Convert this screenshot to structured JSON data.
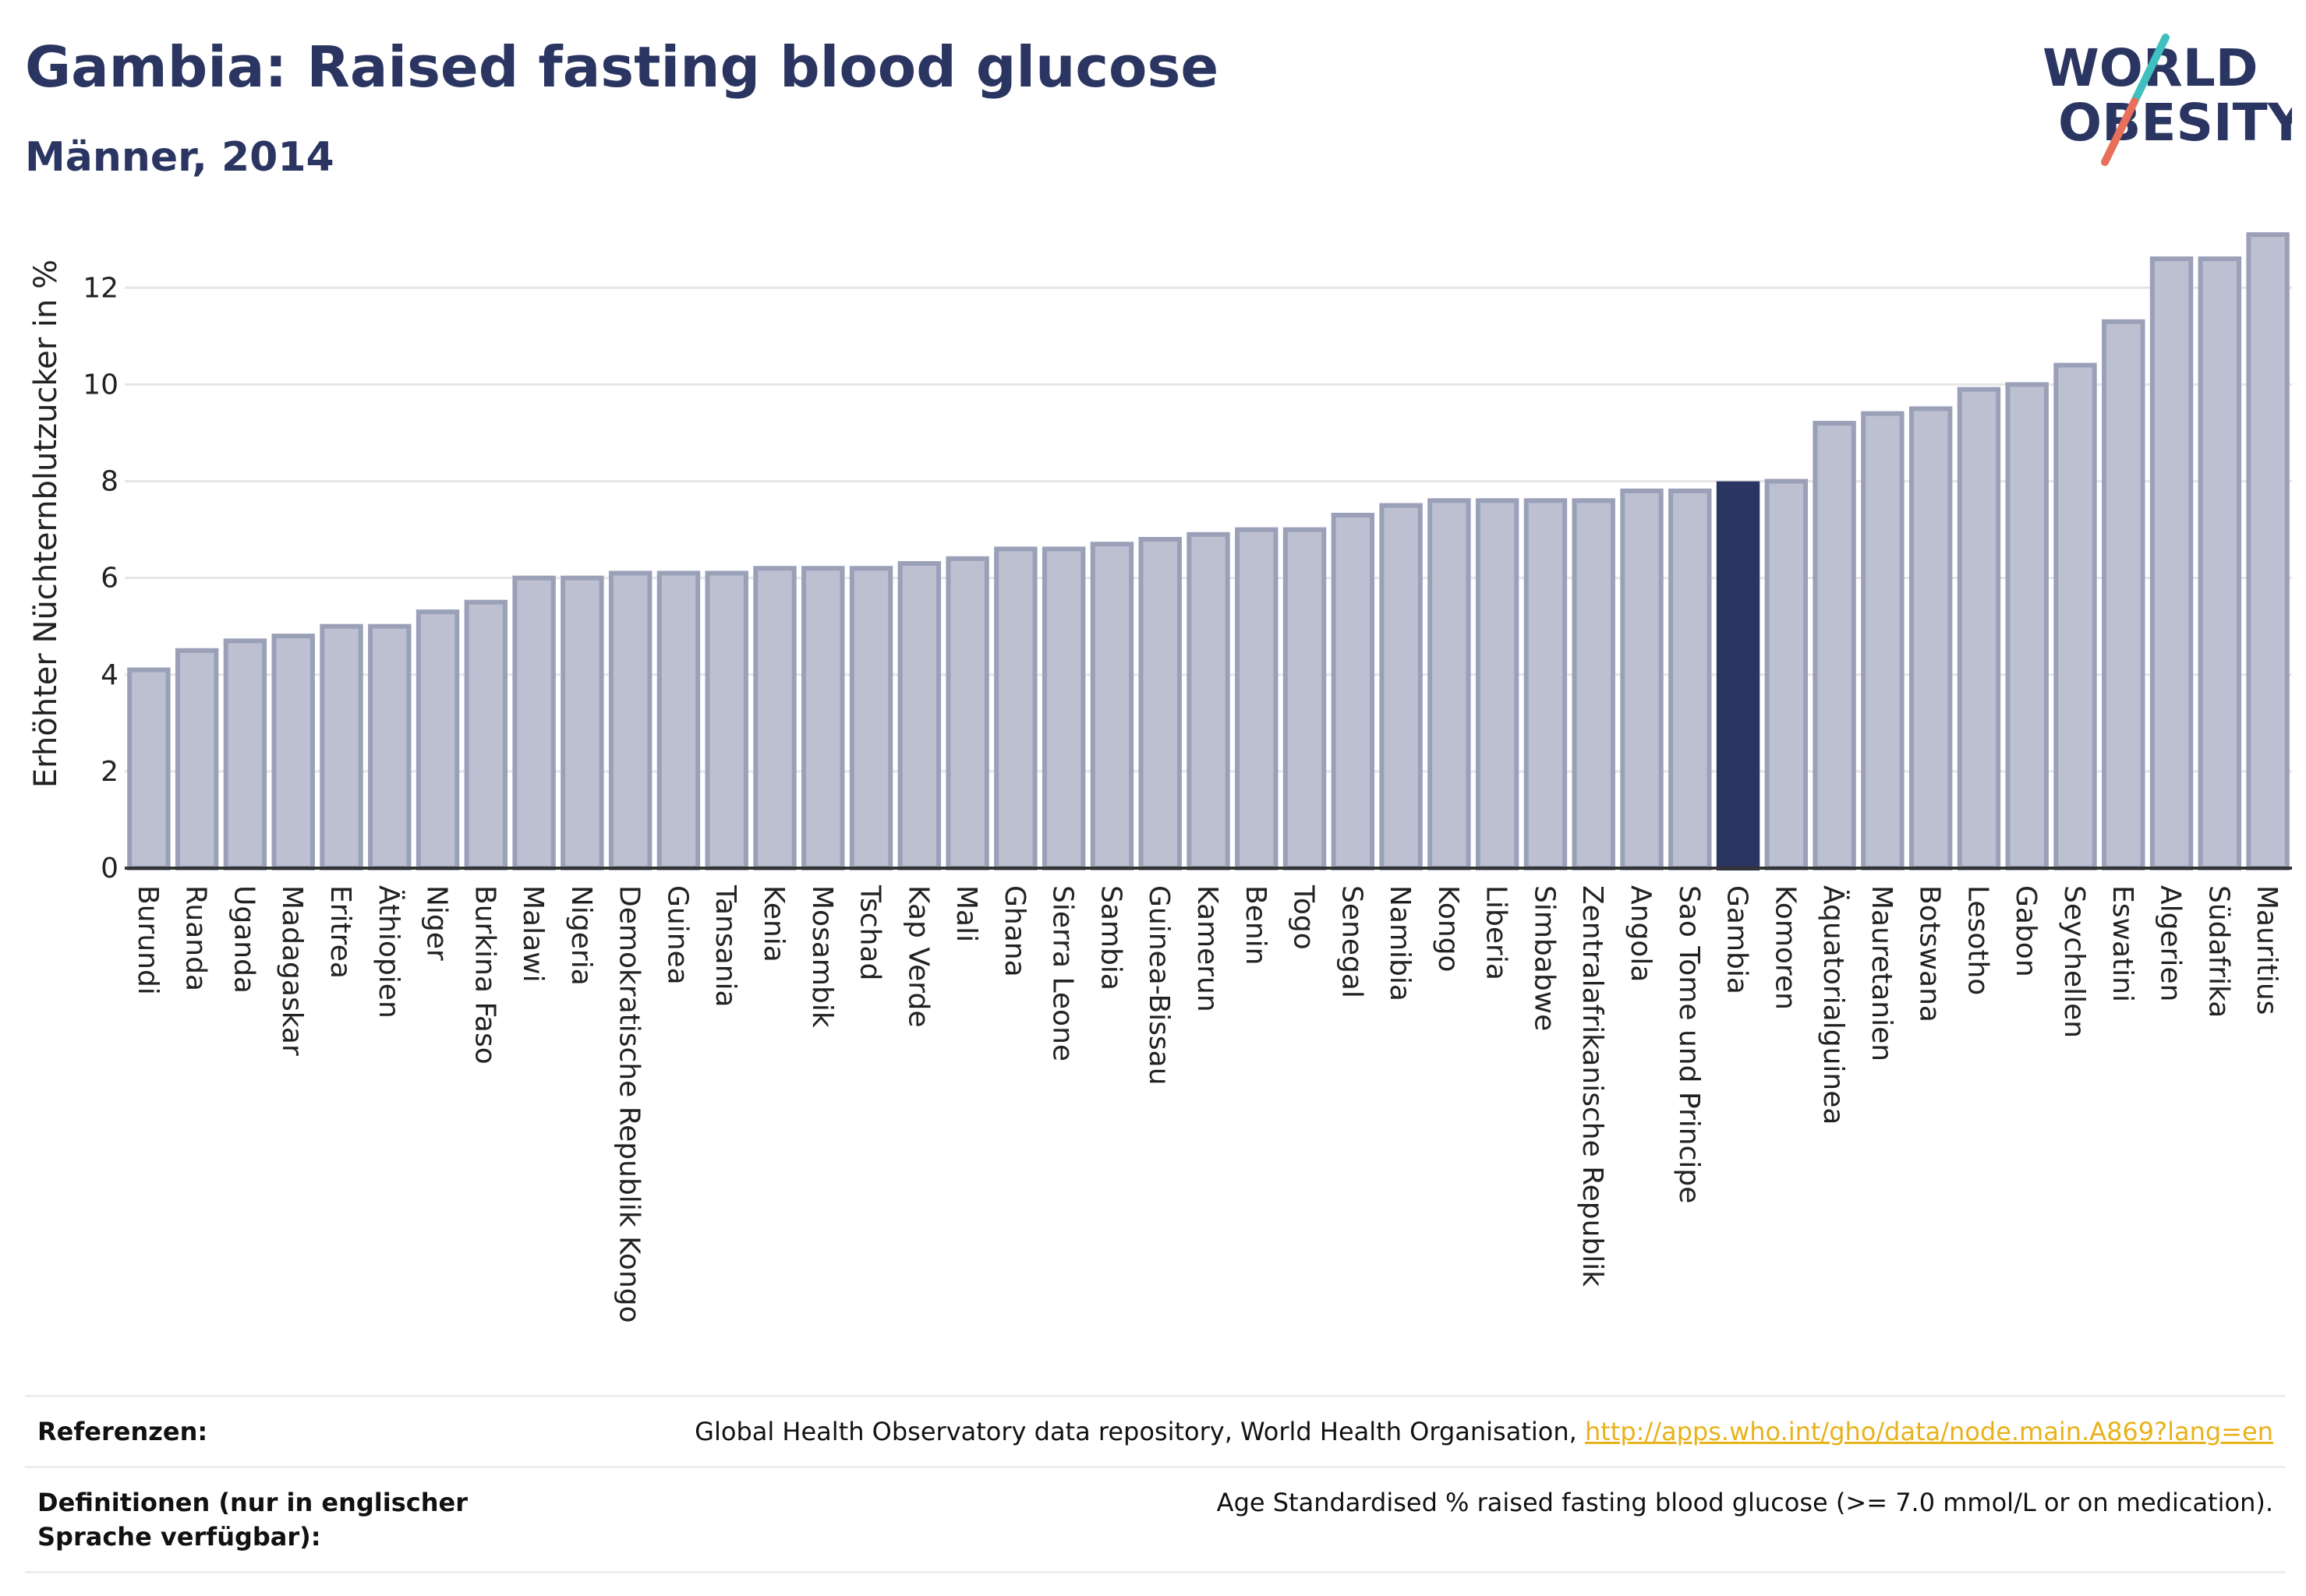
{
  "header": {
    "title": "Gambia: Raised fasting blood glucose",
    "subtitle": "Männer, 2014"
  },
  "logo": {
    "line1": "WORLD",
    "line2": "OBESITY"
  },
  "chart_data": {
    "type": "bar",
    "ylabel": "Erhöhter Nüchternblutzucker in %",
    "ylim": [
      0,
      13.6
    ],
    "yticks": [
      0,
      2,
      4,
      6,
      8,
      10,
      12
    ],
    "grid": true,
    "highlight": "Gambia",
    "colors": {
      "bar": "#bcc0d0",
      "bar_border": "#9aa0b8",
      "highlight": "#2b3561",
      "grid": "#e6e6e6",
      "axis": "#333333"
    },
    "categories": [
      "Burundi",
      "Ruanda",
      "Uganda",
      "Madagaskar",
      "Eritrea",
      "Äthiopien",
      "Niger",
      "Burkina Faso",
      "Malawi",
      "Nigeria",
      "Demokratische Republik Kongo",
      "Guinea",
      "Tansania",
      "Kenia",
      "Mosambik",
      "Tschad",
      "Kap Verde",
      "Mali",
      "Ghana",
      "Sierra Leone",
      "Sambia",
      "Guinea-Bissau",
      "Kamerun",
      "Benin",
      "Togo",
      "Senegal",
      "Namibia",
      "Kongo",
      "Liberia",
      "Simbabwe",
      "Zentralafrikanische Republik",
      "Angola",
      "Sao Tome und Principe",
      "Gambia",
      "Komoren",
      "Äquatorialguinea",
      "Mauretanien",
      "Botswana",
      "Lesotho",
      "Gabon",
      "Seychellen",
      "Eswatini",
      "Algerien",
      "Südafrika",
      "Mauritius"
    ],
    "values": [
      4.1,
      4.5,
      4.7,
      4.8,
      5.0,
      5.0,
      5.3,
      5.5,
      6.0,
      6.0,
      6.1,
      6.1,
      6.1,
      6.2,
      6.2,
      6.2,
      6.3,
      6.4,
      6.6,
      6.6,
      6.7,
      6.8,
      6.9,
      7.0,
      7.0,
      7.3,
      7.5,
      7.6,
      7.6,
      7.6,
      7.6,
      7.8,
      7.8,
      7.95,
      8.0,
      9.2,
      9.4,
      9.5,
      9.9,
      10.0,
      10.4,
      11.3,
      12.6,
      12.6,
      13.1
    ]
  },
  "references": {
    "ref_label": "Referenzen:",
    "ref_text": "Global Health Observatory data repository, World Health Organisation, ",
    "ref_link": "http://apps.who.int/gho/data/node.main.A869?lang=en",
    "def_label": "Definitionen (nur in englischer Sprache verfügbar):",
    "def_text": "Age Standardised % raised fasting blood glucose (>= 7.0 mmol/L or on medication)."
  }
}
